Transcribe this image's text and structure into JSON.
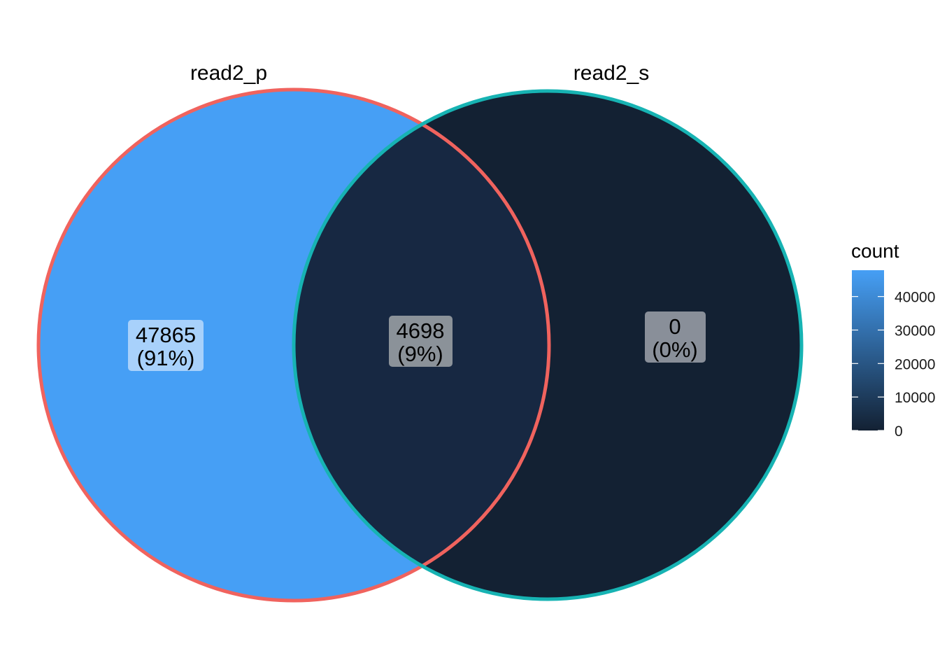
{
  "sets": [
    {
      "name": "read2_p",
      "stroke_color": "#F0635E"
    },
    {
      "name": "read2_s",
      "stroke_color": "#17B3B3"
    }
  ],
  "regions": [
    {
      "id": "only-read2-p",
      "sets": [
        "read2_p"
      ],
      "count": "47865",
      "percent": "(91%)",
      "value": 47865,
      "fill": "#469FF5"
    },
    {
      "id": "intersection",
      "sets": [
        "read2_p",
        "read2_s"
      ],
      "count": "4698",
      "percent": "(9%)",
      "value": 4698,
      "fill": "#172842"
    },
    {
      "id": "only-read2-s",
      "sets": [
        "read2_s"
      ],
      "count": "0",
      "percent": "(0%)",
      "value": 0,
      "fill": "#132133"
    }
  ],
  "legend": {
    "title": "count",
    "ticks": [
      "0",
      "10000",
      "20000",
      "30000",
      "40000"
    ],
    "tick_values": [
      0,
      10000,
      20000,
      30000,
      40000
    ],
    "max_value": 47865,
    "low_color": "#132133",
    "high_color": "#469FF5"
  }
}
